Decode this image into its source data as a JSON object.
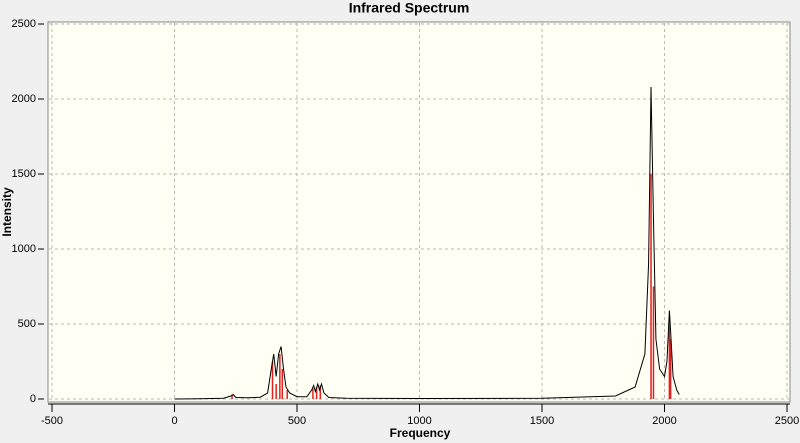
{
  "chart_data": {
    "type": "line",
    "title": "Infrared Spectrum",
    "x_label": "Frequency",
    "y_label": "Intensity",
    "xlim": [
      -500,
      2500
    ],
    "ylim": [
      0,
      2500
    ],
    "xticks": [
      -500,
      0,
      500,
      1000,
      1500,
      2000,
      2500
    ],
    "yticks": [
      0,
      500,
      1000,
      1500,
      2000,
      2500
    ],
    "grid": true,
    "series": [
      {
        "color": "#000000",
        "x": [
          0,
          100,
          200,
          230,
          240,
          250,
          300,
          350,
          380,
          395,
          405,
          415,
          425,
          435,
          445,
          455,
          470,
          500,
          540,
          560,
          568,
          575,
          585,
          592,
          600,
          610,
          630,
          700,
          1000,
          1500,
          1800,
          1880,
          1920,
          1935,
          1945,
          1955,
          1965,
          1980,
          2000,
          2010,
          2020,
          2025,
          2035,
          2050,
          2060
        ],
        "values": [
          0,
          2,
          5,
          20,
          30,
          10,
          8,
          12,
          40,
          200,
          300,
          150,
          300,
          350,
          200,
          80,
          40,
          15,
          15,
          60,
          90,
          50,
          100,
          60,
          100,
          40,
          10,
          5,
          3,
          5,
          20,
          80,
          300,
          900,
          2080,
          1200,
          400,
          200,
          150,
          250,
          590,
          450,
          150,
          60,
          30
        ]
      },
      {
        "color": "#e02020",
        "style": "sticks",
        "x": [
          235,
          400,
          415,
          430,
          440,
          460,
          565,
          580,
          595,
          1945,
          1955,
          2020,
          2025
        ],
        "values": [
          30,
          250,
          100,
          300,
          200,
          60,
          70,
          80,
          90,
          1500,
          750,
          550,
          400
        ]
      }
    ]
  }
}
